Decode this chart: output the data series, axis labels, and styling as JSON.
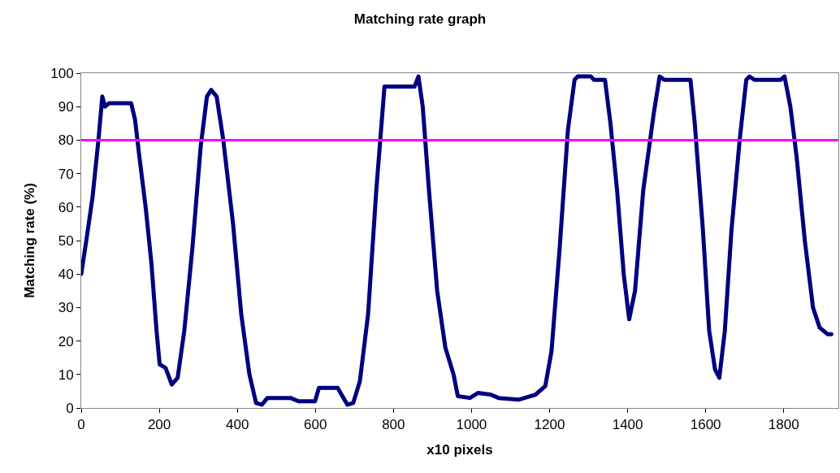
{
  "chart_data": {
    "type": "line",
    "title": "Matching rate graph",
    "xlabel": "x10 pixels",
    "ylabel": "Matching rate (%)",
    "xlim": [
      0,
      1940
    ],
    "xticks": [
      0,
      200,
      400,
      600,
      800,
      1000,
      1200,
      1400,
      1600,
      1800
    ],
    "ylim": [
      0,
      100
    ],
    "yticks": [
      0,
      10,
      20,
      30,
      40,
      50,
      60,
      70,
      80,
      90,
      100
    ],
    "legend": false,
    "ref_lines": [
      {
        "axis": "y",
        "value": 80,
        "color": "#ff00ff"
      }
    ],
    "series": [
      {
        "color": "#000080",
        "x": [
          0,
          13,
          29,
          44,
          54,
          61,
          71,
          128,
          138,
          149,
          165,
          180,
          193,
          201,
          216,
          232,
          247,
          264,
          285,
          306,
          322,
          333,
          347,
          364,
          389,
          410,
          431,
          448,
          463,
          477,
          536,
          557,
          599,
          609,
          657,
          672,
          682,
          697,
          714,
          735,
          756,
          777,
          787,
          854,
          864,
          875,
          891,
          912,
          933,
          954,
          965,
          996,
          1017,
          1049,
          1069,
          1122,
          1164,
          1189,
          1205,
          1226,
          1247,
          1264,
          1272,
          1306,
          1314,
          1342,
          1356,
          1373,
          1390,
          1404,
          1419,
          1440,
          1467,
          1482,
          1494,
          1561,
          1572,
          1593,
          1609,
          1624,
          1635,
          1649,
          1666,
          1687,
          1704,
          1712,
          1725,
          1792,
          1802,
          1817,
          1833,
          1854,
          1875,
          1892,
          1913,
          1922
        ],
        "values": [
          40,
          50,
          63,
          80,
          93,
          90,
          91,
          91,
          86,
          75,
          60,
          43,
          23,
          13,
          12,
          7,
          9,
          23,
          48,
          78,
          93,
          95,
          93,
          80,
          55,
          28,
          10,
          1.5,
          1,
          3,
          3,
          2,
          2,
          6,
          6,
          3,
          1,
          1.5,
          8,
          28,
          65,
          96,
          96,
          96,
          99,
          90,
          65,
          35,
          18,
          10,
          3.5,
          3,
          4.5,
          4,
          3,
          2.5,
          4,
          6.5,
          17,
          48,
          83,
          98,
          99,
          99,
          98,
          98,
          85,
          65,
          40,
          26.5,
          35,
          65,
          88,
          99,
          98,
          98,
          85,
          53,
          23,
          11.5,
          9,
          23,
          53,
          80,
          98,
          99,
          98,
          98,
          99,
          90,
          75,
          50,
          30,
          24,
          22,
          22
        ]
      }
    ]
  }
}
